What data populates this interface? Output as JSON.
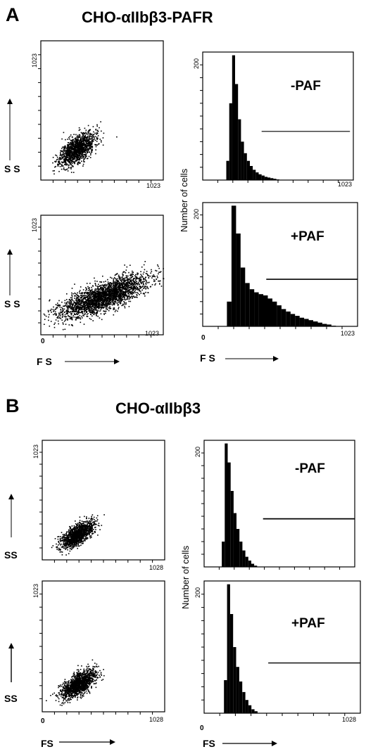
{
  "panel_a": {
    "letter": "A",
    "title": "CHO-αIIbβ3-PAFR",
    "scatter_ylabel": "S S",
    "xlabel": "F S",
    "hist_ylabel": "Number of cells",
    "tick_max": "1023",
    "hist_ymax_tick": "200",
    "origin": "0"
  },
  "panel_b": {
    "letter": "B",
    "title": "CHO-αIIbβ3",
    "scatter_ylabel": "SS",
    "xlabel": "FS",
    "hist_ylabel": "Number of cells",
    "tick_max": "1023",
    "tick_max_alt": "1028",
    "hist_ymax_tick": "200",
    "origin": "0"
  },
  "conditions": {
    "minus": "-PAF",
    "plus": "+PAF"
  },
  "chart_data": [
    {
      "id": "A-scatter-minus",
      "type": "scatter",
      "xlabel": "FS",
      "ylabel": "SS",
      "xlim": [
        0,
        1023
      ],
      "ylim": [
        0,
        1023
      ],
      "cluster": {
        "x_center": 300,
        "y_center": 230,
        "x_spread": 130,
        "y_spread": 110,
        "correlation": 0.6
      },
      "n_points": 1400
    },
    {
      "id": "A-hist-minus",
      "type": "bar",
      "condition": "-PAF",
      "xlabel": "FS",
      "ylabel": "Number of cells",
      "xlim": [
        0,
        1023
      ],
      "ylim": [
        0,
        200
      ],
      "bins_x": [
        160,
        180,
        200,
        220,
        240,
        260,
        280,
        300,
        320,
        340,
        360,
        380,
        400,
        420,
        440,
        460,
        480,
        500,
        520
      ],
      "values": [
        30,
        120,
        195,
        150,
        95,
        60,
        42,
        30,
        22,
        16,
        12,
        9,
        7,
        5,
        4,
        3,
        2,
        1,
        0
      ],
      "gate_range": [
        400,
        1000
      ]
    },
    {
      "id": "A-scatter-plus",
      "type": "scatter",
      "xlabel": "FS",
      "ylabel": "SS",
      "xlim": [
        0,
        1023
      ],
      "ylim": [
        0,
        1023
      ],
      "cluster": {
        "x_center": 520,
        "y_center": 330,
        "x_spread": 330,
        "y_spread": 160,
        "correlation": 0.75
      },
      "n_points": 2600
    },
    {
      "id": "A-hist-plus",
      "type": "bar",
      "condition": "+PAF",
      "xlabel": "FS",
      "ylabel": "Number of cells",
      "xlim": [
        0,
        1023
      ],
      "ylim": [
        0,
        200
      ],
      "bins_x": [
        160,
        190,
        220,
        250,
        280,
        310,
        340,
        370,
        400,
        430,
        460,
        490,
        520,
        550,
        580,
        610,
        640,
        670,
        700,
        730,
        760,
        790,
        820,
        850
      ],
      "values": [
        40,
        195,
        150,
        95,
        70,
        60,
        55,
        52,
        50,
        45,
        40,
        34,
        28,
        24,
        20,
        17,
        14,
        12,
        10,
        8,
        6,
        4,
        3,
        1
      ],
      "gate_range": [
        420,
        1023
      ]
    },
    {
      "id": "B-scatter-minus",
      "type": "scatter",
      "xlabel": "FS",
      "ylabel": "SS",
      "xlim": [
        0,
        1023
      ],
      "ylim": [
        0,
        1023
      ],
      "cluster": {
        "x_center": 290,
        "y_center": 220,
        "x_spread": 120,
        "y_spread": 100,
        "correlation": 0.65
      },
      "n_points": 1400
    },
    {
      "id": "B-hist-minus",
      "type": "bar",
      "condition": "-PAF",
      "xlabel": "FS",
      "ylabel": "Number of cells",
      "xlim": [
        0,
        1023
      ],
      "ylim": [
        0,
        200
      ],
      "bins_x": [
        120,
        140,
        160,
        180,
        200,
        220,
        240,
        260,
        280,
        300,
        320,
        340,
        360
      ],
      "values": [
        40,
        195,
        165,
        120,
        85,
        60,
        40,
        26,
        16,
        10,
        5,
        2,
        0
      ],
      "gate_range": [
        400,
        1023
      ]
    },
    {
      "id": "B-scatter-plus",
      "type": "scatter",
      "xlabel": "FS",
      "ylabel": "SS",
      "xlim": [
        0,
        1023
      ],
      "ylim": [
        0,
        1023
      ],
      "cluster": {
        "x_center": 300,
        "y_center": 220,
        "x_spread": 130,
        "y_spread": 100,
        "correlation": 0.65
      },
      "n_points": 1400
    },
    {
      "id": "B-hist-plus",
      "type": "bar",
      "condition": "+PAF",
      "xlabel": "FS",
      "ylabel": "Number of cells",
      "xlim": [
        0,
        1023
      ],
      "ylim": [
        0,
        200
      ],
      "bins_x": [
        130,
        150,
        170,
        190,
        210,
        230,
        250,
        270,
        290,
        310,
        330,
        350
      ],
      "values": [
        50,
        195,
        150,
        100,
        70,
        48,
        32,
        20,
        12,
        6,
        3,
        0
      ],
      "gate_range": [
        420,
        1023
      ]
    }
  ]
}
